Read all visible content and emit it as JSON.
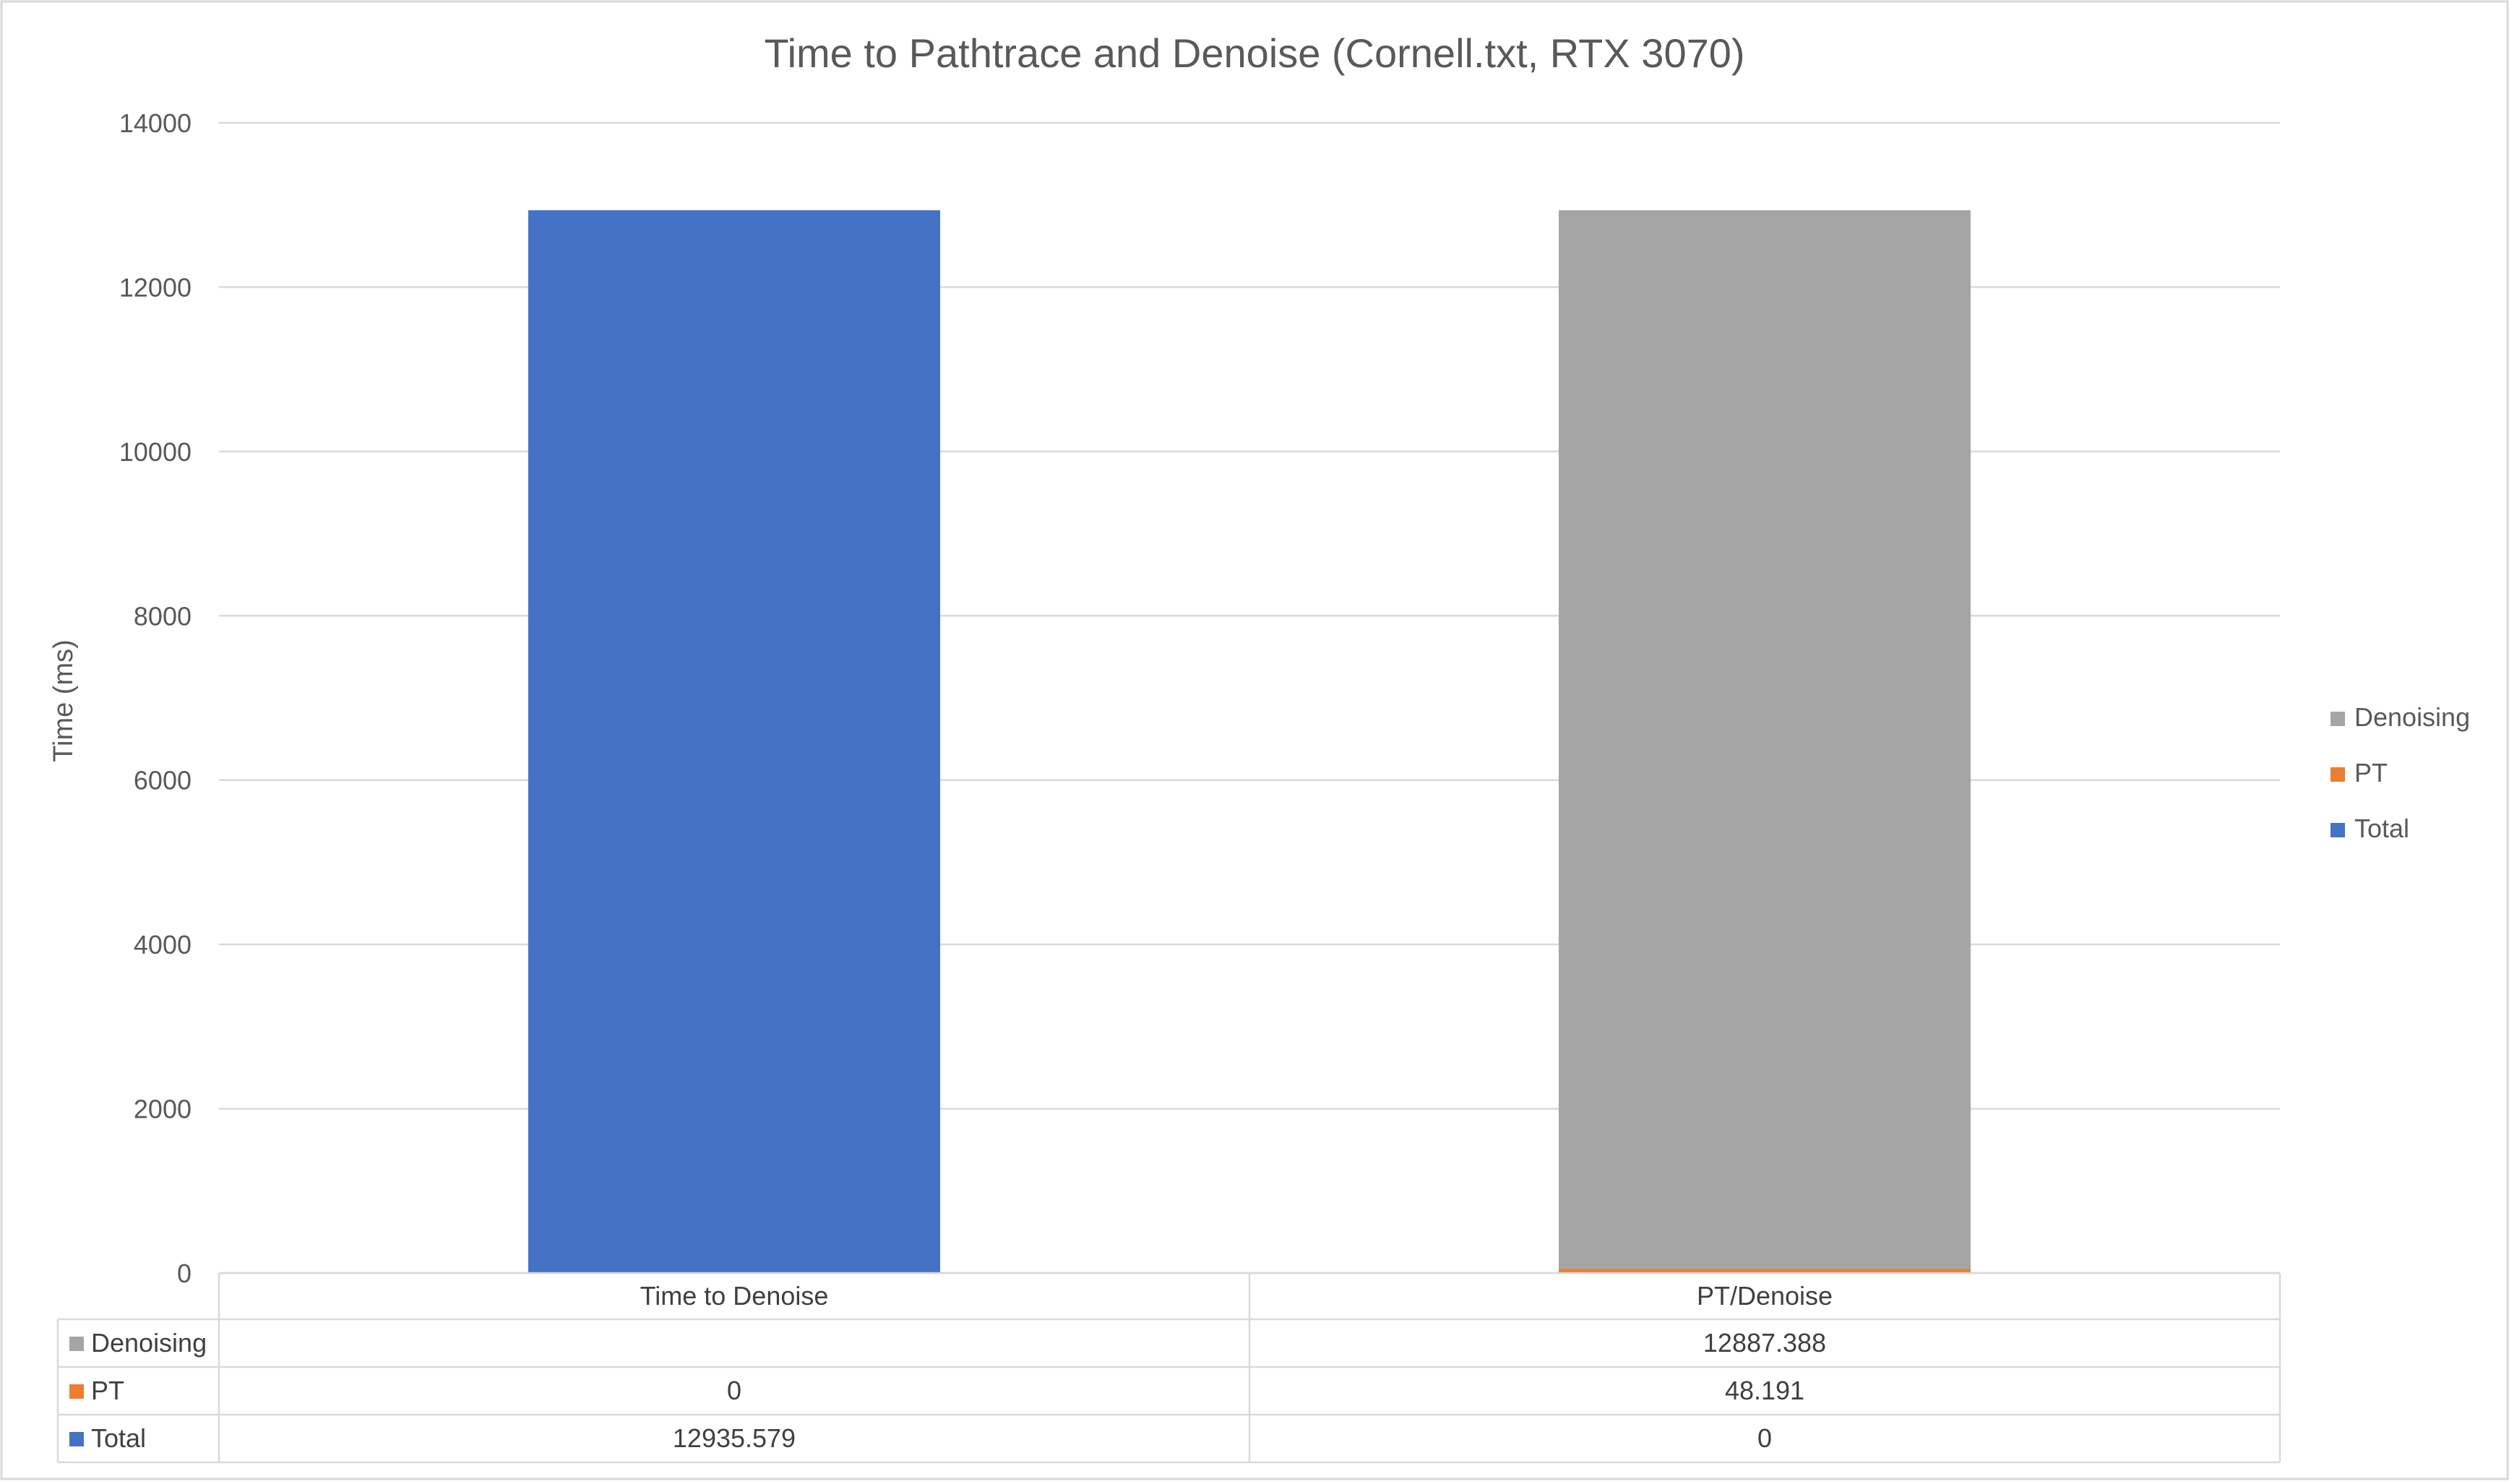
{
  "chart_data": {
    "type": "bar",
    "stacked": true,
    "title": "Time to Pathtrace and Denoise (Cornell.txt, RTX 3070)",
    "ylabel": "Time (ms)",
    "xlabel": "",
    "ylim": [
      0,
      14000
    ],
    "yticks": [
      0,
      2000,
      4000,
      6000,
      8000,
      10000,
      12000,
      14000
    ],
    "grid": true,
    "legend_position": "right",
    "categories": [
      "Time to Denoise",
      "PT/Denoise"
    ],
    "series": [
      {
        "name": "Total",
        "color": "#4472C4",
        "values": [
          12935.579,
          0
        ],
        "labels": [
          "12935.579",
          "0"
        ]
      },
      {
        "name": "PT",
        "color": "#ED7D31",
        "values": [
          0,
          48.191
        ],
        "labels": [
          "0",
          "48.191"
        ]
      },
      {
        "name": "Denoising",
        "color": "#A5A5A5",
        "values": [
          null,
          12887.388
        ],
        "labels": [
          "",
          "12887.388"
        ]
      }
    ],
    "legend_order": [
      "Denoising",
      "PT",
      "Total"
    ],
    "data_table": true
  }
}
